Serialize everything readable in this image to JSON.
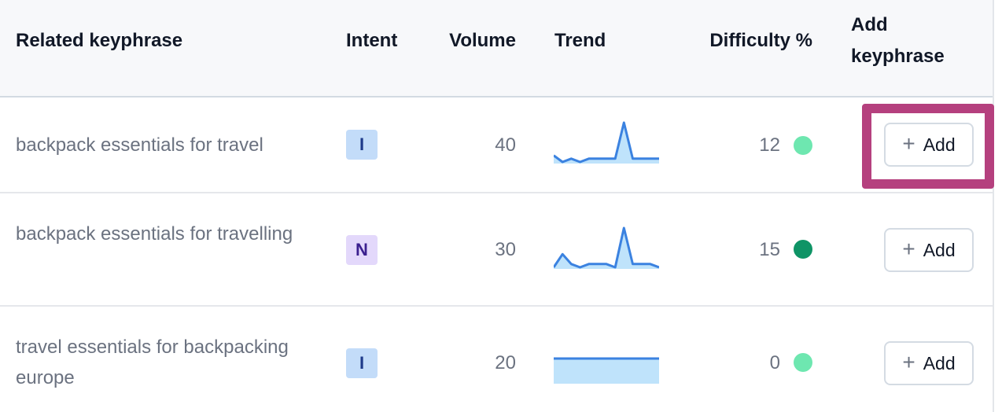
{
  "columns": {
    "keyphrase": "Related keyphrase",
    "intent": "Intent",
    "volume": "Volume",
    "trend": "Trend",
    "difficulty": "Difficulty %",
    "add_line1": "Add",
    "add_line2": "keyphrase"
  },
  "rows": [
    {
      "keyphrase": "backpack essentials for travel",
      "intent": "I",
      "volume": "40",
      "difficulty": "12",
      "difficulty_color": "#6ee7b0",
      "add_label": "Add",
      "trend": [
        2,
        0,
        1,
        0,
        1,
        1,
        1,
        1,
        12,
        1,
        1,
        1,
        1
      ]
    },
    {
      "keyphrase": "backpack essentials for travelling",
      "intent": "N",
      "volume": "30",
      "difficulty": "15",
      "difficulty_color": "#0f9466",
      "add_label": "Add",
      "trend": [
        0,
        4,
        1,
        0,
        1,
        1,
        1,
        0,
        12,
        1,
        1,
        1,
        0
      ]
    },
    {
      "keyphrase": "travel essentials for backpacking europe",
      "intent": "I",
      "volume": "20",
      "difficulty": "0",
      "difficulty_color": "#6ee7b0",
      "add_label": "Add",
      "trend": [
        1,
        1,
        1,
        1,
        1,
        1,
        1,
        1,
        1,
        1,
        1,
        1,
        1
      ]
    }
  ],
  "colors": {
    "trend_line": "#3b82e0",
    "trend_fill": "#bfe3fb",
    "highlight": "#b5407e"
  }
}
